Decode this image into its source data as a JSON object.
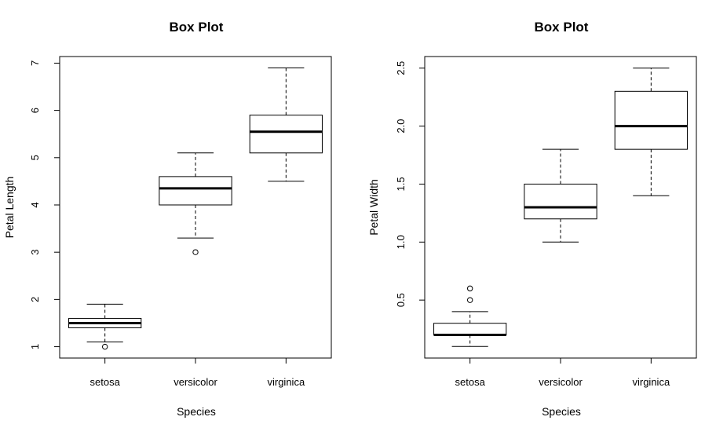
{
  "chart_data": [
    {
      "type": "boxplot",
      "title": "Box Plot",
      "xlabel": "Species",
      "ylabel": "Petal Length",
      "categories": [
        "setosa",
        "versicolor",
        "virginica"
      ],
      "ylim": [
        0.76,
        7.14
      ],
      "yticks": [
        "1",
        "2",
        "3",
        "4",
        "5",
        "6",
        "7"
      ],
      "boxes": [
        {
          "category": "setosa",
          "whisker_low": 1.1,
          "q1": 1.4,
          "median": 1.5,
          "q3": 1.6,
          "whisker_high": 1.9,
          "outliers": [
            1.0
          ]
        },
        {
          "category": "versicolor",
          "whisker_low": 3.3,
          "q1": 4.0,
          "median": 4.35,
          "q3": 4.6,
          "whisker_high": 5.1,
          "outliers": [
            3.0
          ]
        },
        {
          "category": "virginica",
          "whisker_low": 4.5,
          "q1": 5.1,
          "median": 5.55,
          "q3": 5.9,
          "whisker_high": 6.9,
          "outliers": []
        }
      ]
    },
    {
      "type": "boxplot",
      "title": "Box Plot",
      "xlabel": "Species",
      "ylabel": "Petal Width",
      "categories": [
        "setosa",
        "versicolor",
        "virginica"
      ],
      "ylim": [
        0.0,
        2.6
      ],
      "yticks": [
        "0.5",
        "1.0",
        "1.5",
        "2.0",
        "2.5"
      ],
      "boxes": [
        {
          "category": "setosa",
          "whisker_low": 0.1,
          "q1": 0.2,
          "median": 0.2,
          "q3": 0.3,
          "whisker_high": 0.4,
          "outliers": [
            0.5,
            0.6
          ]
        },
        {
          "category": "versicolor",
          "whisker_low": 1.0,
          "q1": 1.2,
          "median": 1.3,
          "q3": 1.5,
          "whisker_high": 1.8,
          "outliers": []
        },
        {
          "category": "virginica",
          "whisker_low": 1.4,
          "q1": 1.8,
          "median": 2.0,
          "q3": 2.3,
          "whisker_high": 2.5,
          "outliers": []
        }
      ]
    }
  ]
}
